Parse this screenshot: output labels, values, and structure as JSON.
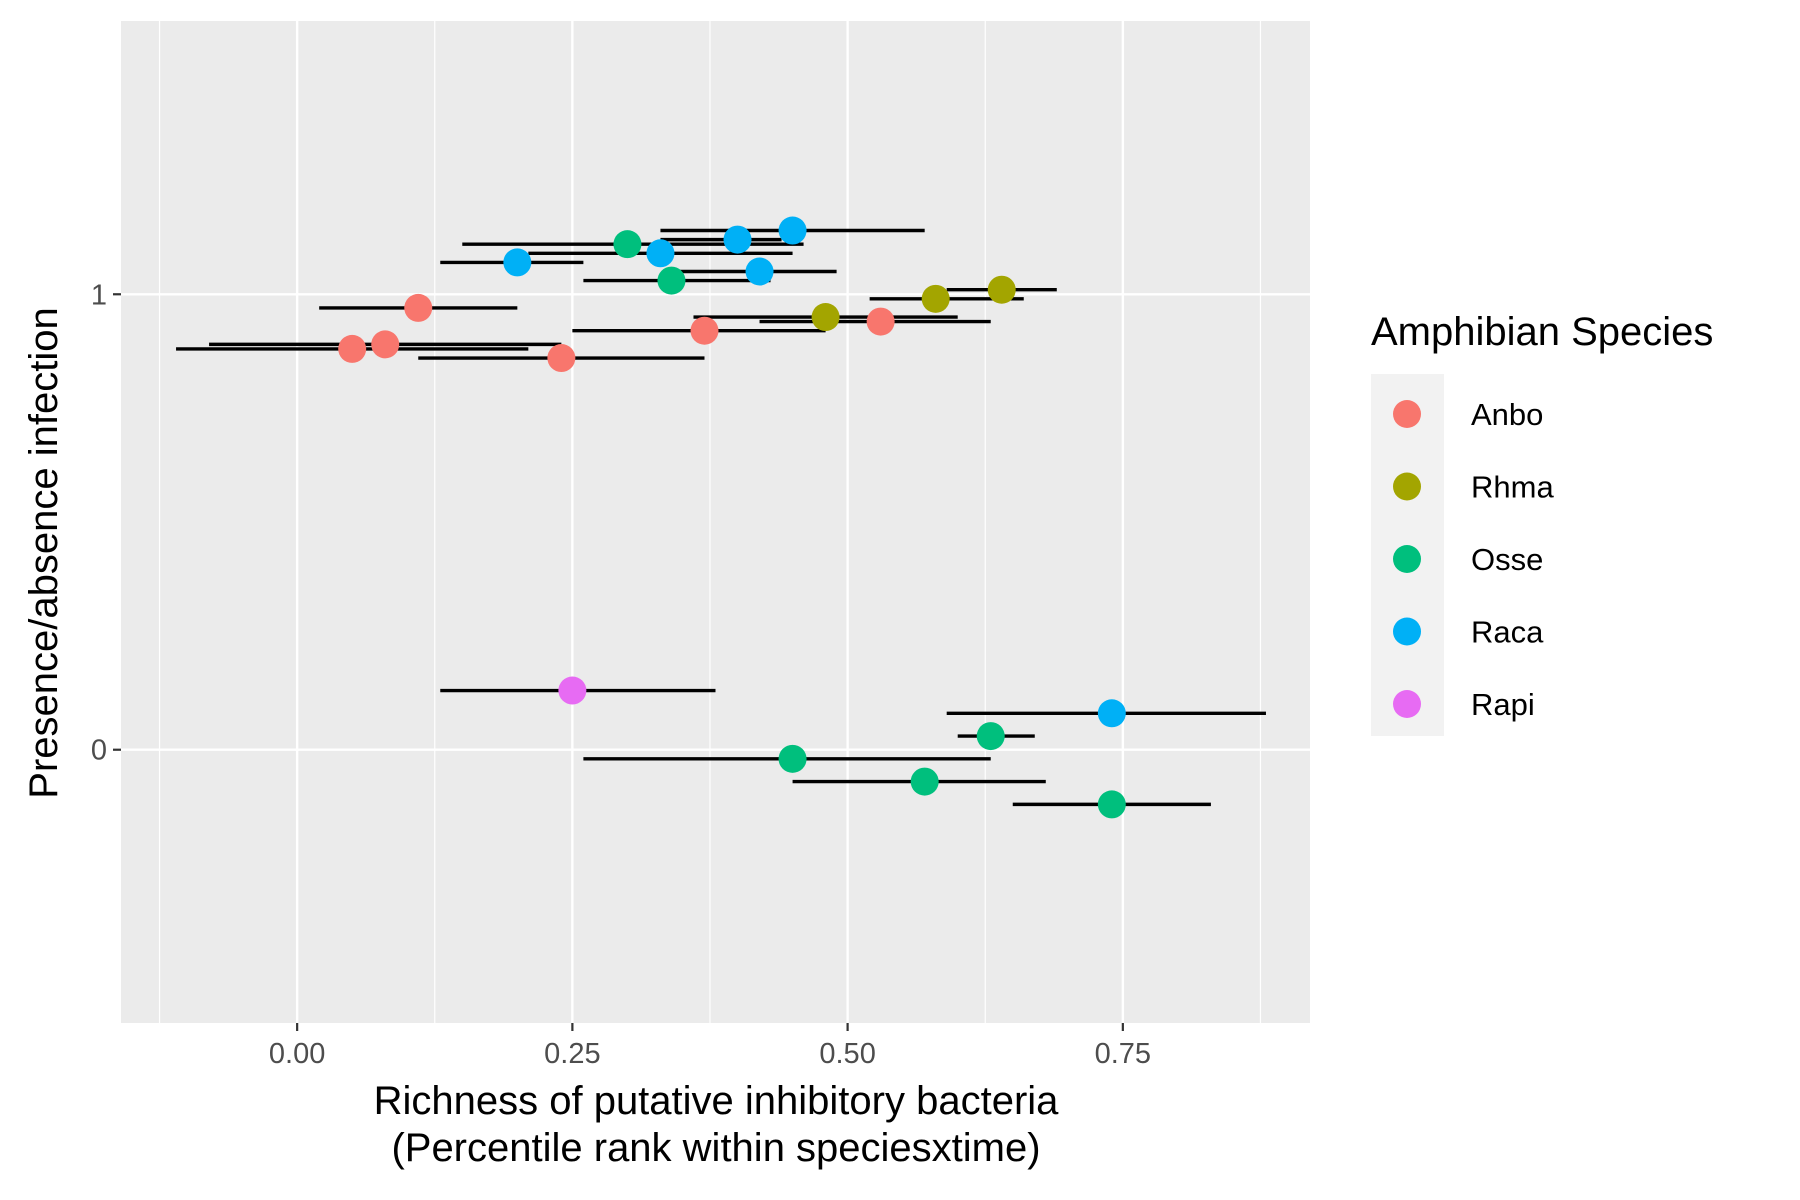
{
  "chart_data": {
    "type": "scatter",
    "title": "",
    "xlabel": [
      "Richness of putative inhibitory bacteria",
      "(Percentile rank within speciesxtime)"
    ],
    "ylabel": "Presence/absence infection",
    "xlim": [
      -0.16,
      0.92
    ],
    "ylim": [
      -0.6,
      1.6
    ],
    "x_ticks": [
      0.0,
      0.25,
      0.5,
      0.75
    ],
    "x_tick_labels": [
      "0.00",
      "0.25",
      "0.50",
      "0.75"
    ],
    "y_ticks": [
      0,
      1
    ],
    "y_tick_labels": [
      "0",
      "1"
    ],
    "grid": true,
    "legend": {
      "title": "Amphibian Species",
      "placement": "right",
      "entries": [
        {
          "name": "Anbo",
          "color": "#F8766D"
        },
        {
          "name": "Rhma",
          "color": "#A3A500"
        },
        {
          "name": "Osse",
          "color": "#00BF7D"
        },
        {
          "name": "Raca",
          "color": "#00B0F6"
        },
        {
          "name": "Rapi",
          "color": "#E76BF3"
        }
      ]
    },
    "series": [
      {
        "name": "Anbo",
        "points": [
          {
            "x": 0.11,
            "y": 0.97,
            "xmin": 0.02,
            "xmax": 0.2
          },
          {
            "x": 0.05,
            "y": 0.88,
            "xmin": -0.11,
            "xmax": 0.21
          },
          {
            "x": 0.08,
            "y": 0.89,
            "xmin": -0.08,
            "xmax": 0.24
          },
          {
            "x": 0.24,
            "y": 0.86,
            "xmin": 0.11,
            "xmax": 0.37
          },
          {
            "x": 0.37,
            "y": 0.92,
            "xmin": 0.25,
            "xmax": 0.48
          },
          {
            "x": 0.53,
            "y": 0.94,
            "xmin": 0.42,
            "xmax": 0.63
          }
        ]
      },
      {
        "name": "Rhma",
        "points": [
          {
            "x": 0.64,
            "y": 1.01,
            "xmin": 0.59,
            "xmax": 0.69
          },
          {
            "x": 0.58,
            "y": 0.99,
            "xmin": 0.52,
            "xmax": 0.66
          },
          {
            "x": 0.48,
            "y": 0.95,
            "xmin": 0.36,
            "xmax": 0.6
          }
        ]
      },
      {
        "name": "Osse",
        "points": [
          {
            "x": 0.3,
            "y": 1.11,
            "xmin": 0.15,
            "xmax": 0.46
          },
          {
            "x": 0.34,
            "y": 1.03,
            "xmin": 0.26,
            "xmax": 0.43
          },
          {
            "x": 0.63,
            "y": 0.03,
            "xmin": 0.6,
            "xmax": 0.67
          },
          {
            "x": 0.45,
            "y": -0.02,
            "xmin": 0.26,
            "xmax": 0.63
          },
          {
            "x": 0.57,
            "y": -0.07,
            "xmin": 0.45,
            "xmax": 0.68
          },
          {
            "x": 0.74,
            "y": -0.12,
            "xmin": 0.65,
            "xmax": 0.83
          }
        ]
      },
      {
        "name": "Raca",
        "points": [
          {
            "x": 0.45,
            "y": 1.14,
            "xmin": 0.33,
            "xmax": 0.57
          },
          {
            "x": 0.4,
            "y": 1.12,
            "xmin": 0.33,
            "xmax": 0.44
          },
          {
            "x": 0.33,
            "y": 1.09,
            "xmin": 0.21,
            "xmax": 0.45
          },
          {
            "x": 0.2,
            "y": 1.07,
            "xmin": 0.13,
            "xmax": 0.26
          },
          {
            "x": 0.42,
            "y": 1.05,
            "xmin": 0.34,
            "xmax": 0.49
          },
          {
            "x": 0.74,
            "y": 0.08,
            "xmin": 0.59,
            "xmax": 0.88
          }
        ]
      },
      {
        "name": "Rapi",
        "points": [
          {
            "x": 0.25,
            "y": 0.13,
            "xmin": 0.13,
            "xmax": 0.38
          }
        ]
      }
    ]
  }
}
